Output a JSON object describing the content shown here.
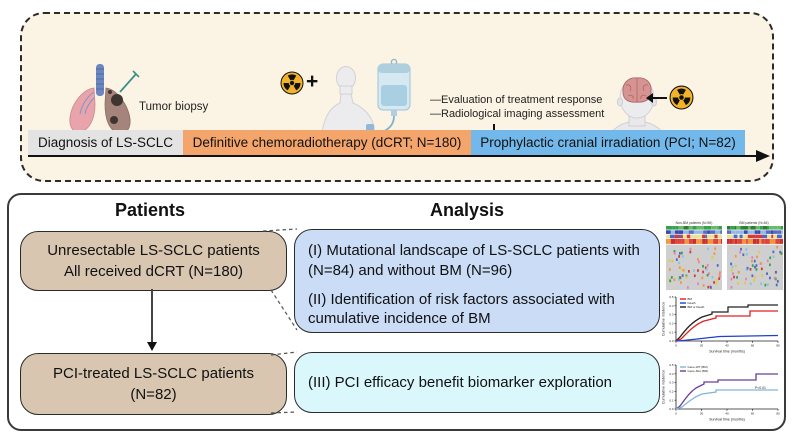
{
  "colors": {
    "panel_bg": "#FBF4E4",
    "timeline_diagnosis": "#E3E3E3",
    "timeline_dcrt": "#F4A56B",
    "timeline_pci": "#72B8EA",
    "patient_box": "#D8C6B1",
    "analysis_box_1": "#CADCF6",
    "analysis_box_2": "#DAF7FB"
  },
  "top_panel": {
    "tumor_biopsy_label": "Tumor biopsy",
    "plus_sign": "+",
    "annotations": [
      "—Evaluation of treatment response",
      "—Radiological imaging assessment"
    ],
    "timeline": {
      "diagnosis": {
        "label": "Diagnosis of LS-SCLC"
      },
      "dcrt": {
        "label": "Definitive chemoradiotherapy (dCRT; N=180)"
      },
      "pci": {
        "label": "Prophylactic cranial irradiation (PCI; N=82)"
      }
    }
  },
  "bottom_panel": {
    "patients_header": "Patients",
    "analysis_header": "Analysis",
    "patient_boxes": [
      {
        "line1": "Unresectable LS-SCLC patients",
        "line2": "All received dCRT (N=180)"
      },
      {
        "line1": "PCI-treated LS-SCLC patients",
        "line2": "(N=82)"
      }
    ],
    "analysis_boxes": [
      {
        "item1": "(I) Mutational landscape of LS-SCLC patients with (N=84) and without BM (N=96)",
        "item2": "(II) Identification of risk factors associated with cumulative incidence of BM"
      },
      {
        "item1": "(III) PCI efficacy benefit biomarker exploration"
      }
    ],
    "thumbnails": {
      "oncoprint": {
        "left_title": "Non-BM patients (N=96)",
        "right_title": "BM patients (N=84)"
      },
      "incidence_plot1": {
        "ylabel": "Cumulative incidence",
        "xlabel": "Survival time (months)",
        "legend": [
          "BM",
          "Death",
          "BM or Death"
        ],
        "legend_colors": [
          "#e02020",
          "#2040d0",
          "#222222"
        ],
        "xticks": [
          "0",
          "20",
          "40",
          "60",
          "80"
        ],
        "yticks": [
          "0.0",
          "0.1",
          "0.2",
          "0.3",
          "0.4",
          "0.5"
        ]
      },
      "incidence_plot2": {
        "ylabel": "Cumulative incidence",
        "xlabel": "Survival time (months)",
        "legend": [
          "Gene-WT (BM)",
          "Gene-Mut (BM)"
        ],
        "legend_colors": [
          "#7fb6d9",
          "#6a3d9a"
        ],
        "pvalue": "P<0.01",
        "xticks": [
          "0",
          "20",
          "40",
          "60",
          "80"
        ],
        "yticks": [
          "0.0",
          "0.1",
          "0.2",
          "0.3",
          "0.4",
          "0.5"
        ]
      }
    }
  }
}
